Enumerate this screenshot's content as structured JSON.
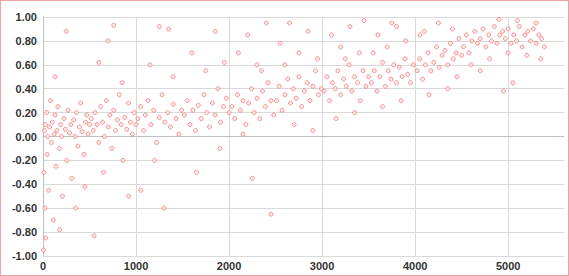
{
  "chart_data": {
    "type": "scatter",
    "color": "#f47a7a",
    "marker": "circle",
    "grid": true,
    "xlim": [
      0,
      5600
    ],
    "xticks": [
      0,
      1000,
      2000,
      3000,
      4000,
      5000
    ],
    "ylim": [
      -1,
      1
    ],
    "yticks": [
      {
        "value": -1,
        "label": "-1.00"
      },
      {
        "value": -0.8,
        "label": "-0.80"
      },
      {
        "value": -0.6,
        "label": "-0.60"
      },
      {
        "value": -0.4,
        "label": "-0.40"
      },
      {
        "value": -0.2,
        "label": "-0.20"
      },
      {
        "value": 0,
        "label": "0.00"
      },
      {
        "value": 0.2,
        "label": "0.20"
      },
      {
        "value": 0.4,
        "label": "0.40"
      },
      {
        "value": 0.6,
        "label": "0.60"
      },
      {
        "value": 0.8,
        "label": "0.80"
      },
      {
        "value": 1,
        "label": "1.00"
      }
    ],
    "x": [
      5,
      10,
      15,
      20,
      25,
      30,
      40,
      45,
      50,
      60,
      70,
      80,
      90,
      100,
      110,
      120,
      130,
      140,
      150,
      160,
      175,
      190,
      200,
      210,
      225,
      240,
      255,
      270,
      285,
      300,
      310,
      330,
      345,
      360,
      375,
      390,
      405,
      420,
      440,
      455,
      470,
      485,
      500,
      250,
      180,
      550,
      350,
      450,
      130,
      520,
      540,
      560,
      580,
      600,
      620,
      640,
      660,
      680,
      700,
      720,
      740,
      760,
      780,
      800,
      820,
      840,
      860,
      880,
      900,
      920,
      940,
      960,
      980,
      1000,
      700,
      760,
      650,
      850,
      920,
      600,
      1020,
      1050,
      1080,
      1100,
      1130,
      1160,
      1190,
      1220,
      1250,
      1280,
      1310,
      1340,
      1370,
      1400,
      1430,
      1460,
      1490,
      1150,
      1250,
      1300,
      1200,
      1400,
      1350,
      1050,
      1520,
      1550,
      1580,
      1610,
      1640,
      1670,
      1700,
      1730,
      1760,
      1790,
      1820,
      1850,
      1880,
      1910,
      1940,
      1970,
      2000,
      1600,
      1750,
      1850,
      1900,
      1650,
      1950,
      2030,
      2060,
      2090,
      2120,
      2150,
      2180,
      2210,
      2240,
      2270,
      2300,
      2330,
      2360,
      2390,
      2420,
      2450,
      2480,
      2100,
      2200,
      2300,
      2400,
      2250,
      2450,
      2150,
      2350,
      2510,
      2540,
      2570,
      2600,
      2630,
      2660,
      2690,
      2720,
      2750,
      2780,
      2810,
      2840,
      2870,
      2900,
      2930,
      2960,
      2990,
      2550,
      2650,
      2750,
      2850,
      2950,
      2700,
      2900,
      2600,
      3020,
      3050,
      3080,
      3110,
      3140,
      3170,
      3200,
      3230,
      3260,
      3290,
      3320,
      3350,
      3380,
      3410,
      3440,
      3470,
      3500,
      3100,
      3200,
      3300,
      3400,
      3150,
      3350,
      3450,
      3250,
      3530,
      3560,
      3590,
      3620,
      3650,
      3680,
      3710,
      3740,
      3770,
      3800,
      3830,
      3860,
      3890,
      3920,
      3950,
      3980,
      3600,
      3700,
      3800,
      3900,
      3650,
      3850,
      3750,
      3550,
      4020,
      4050,
      4080,
      4110,
      4140,
      4170,
      4200,
      4230,
      4260,
      4290,
      4320,
      4350,
      4380,
      4410,
      4440,
      4470,
      4500,
      4100,
      4250,
      4400,
      4150,
      4350,
      4050,
      4450,
      4520,
      4550,
      4580,
      4610,
      4640,
      4670,
      4700,
      4730,
      4760,
      4790,
      4820,
      4850,
      4880,
      4910,
      4940,
      4970,
      5000,
      5030,
      5060,
      5090,
      5120,
      5150,
      5180,
      5210,
      5240,
      5270,
      5300,
      5330,
      5360,
      5390,
      4600,
      4800,
      5000,
      5200,
      4700,
      5100,
      5300,
      4900,
      5350,
      5050,
      4950
    ],
    "values": [
      -0.95,
      -0.3,
      0.05,
      -0.6,
      0.1,
      -0.85,
      0.2,
      -0.15,
      0,
      -0.45,
      0.08,
      0.3,
      -0.05,
      0.12,
      -0.7,
      0.02,
      0.18,
      -0.25,
      0.05,
      0.25,
      -0.1,
      0.1,
      0,
      -0.5,
      0.15,
      0.06,
      -0.2,
      0.22,
      0.03,
      0.1,
      -0.35,
      0.14,
      0,
      0.2,
      -0.08,
      0.08,
      0.28,
      0.04,
      -0.15,
      0.12,
      0.18,
      0.02,
      0.1,
      0.88,
      -0.78,
      -0.83,
      -0.6,
      -0.42,
      0.5,
      0.15,
      0.05,
      0.2,
      0.1,
      -0.05,
      0.25,
      0.12,
      0,
      0.3,
      0.08,
      0.18,
      -0.1,
      0.22,
      0.05,
      0.14,
      0.35,
      0.1,
      -0.2,
      0.16,
      0.06,
      0.28,
      0.12,
      0.02,
      0.2,
      0.1,
      0.8,
      0.93,
      -0.3,
      0.45,
      -0.5,
      0.62,
      0.15,
      0.25,
      0.05,
      0.18,
      0.3,
      0.1,
      0.22,
      -0.05,
      0.16,
      0.35,
      0.12,
      0.2,
      0.08,
      0.27,
      0.15,
      0.02,
      0.22,
      0.6,
      0.92,
      -0.6,
      -0.2,
      0.5,
      0.9,
      -0.45,
      0.18,
      0.3,
      0.1,
      0.22,
      0.05,
      0.26,
      0.15,
      0.35,
      0.2,
      0.08,
      0.28,
      0.18,
      0.4,
      0.12,
      0.25,
      0.32,
      0.2,
      0.7,
      0.55,
      0.88,
      -0.1,
      -0.3,
      0.62,
      0.25,
      0.15,
      0.35,
      0.22,
      0.3,
      0.1,
      0.28,
      0.4,
      0.2,
      0.32,
      0.15,
      0.38,
      0.25,
      0.45,
      0.3,
      0.18,
      0.7,
      0.85,
      0.6,
      0.95,
      -0.35,
      -0.65,
      0.02,
      0.55,
      0.3,
      0.42,
      0.22,
      0.35,
      0.48,
      0.28,
      0.4,
      0.32,
      0.5,
      0.25,
      0.38,
      0.45,
      0.3,
      0.42,
      0.55,
      0.35,
      0.4,
      0.78,
      0.95,
      0.7,
      0.88,
      0.65,
      0.1,
      0.05,
      0.6,
      0.38,
      0.5,
      0.3,
      0.45,
      0.4,
      0.55,
      0.35,
      0.48,
      0.42,
      0.6,
      0.38,
      0.5,
      0.45,
      0.3,
      0.55,
      0.42,
      0.5,
      0.85,
      0.75,
      0.92,
      0.7,
      0.15,
      0.2,
      0.97,
      0.65,
      0.45,
      0.55,
      0.38,
      0.5,
      0.62,
      0.42,
      0.55,
      0.48,
      0.6,
      0.45,
      0.58,
      0.5,
      0.65,
      0.52,
      0.45,
      0.6,
      0.85,
      0.75,
      0.92,
      0.8,
      0.25,
      0.3,
      0.95,
      0.7,
      0.55,
      0.65,
      0.48,
      0.6,
      0.7,
      0.55,
      0.62,
      0.75,
      0.58,
      0.68,
      0.72,
      0.6,
      0.78,
      0.65,
      0.7,
      0.82,
      0.68,
      0.88,
      0.95,
      0.9,
      0.35,
      0.4,
      0.85,
      0.5,
      0.75,
      0.85,
      0.7,
      0.8,
      0.88,
      0.78,
      0.82,
      0.9,
      0.75,
      0.85,
      0.8,
      0.92,
      0.78,
      0.85,
      0.88,
      0.82,
      0.9,
      0.78,
      0.85,
      0.8,
      0.92,
      0.75,
      0.85,
      0.88,
      0.8,
      0.9,
      0.78,
      0.85,
      0.82,
      0.75,
      0.6,
      0.65,
      0.7,
      0.68,
      0.55,
      0.97,
      0.95,
      0.98,
      0.65,
      0.45,
      0.38
    ]
  }
}
